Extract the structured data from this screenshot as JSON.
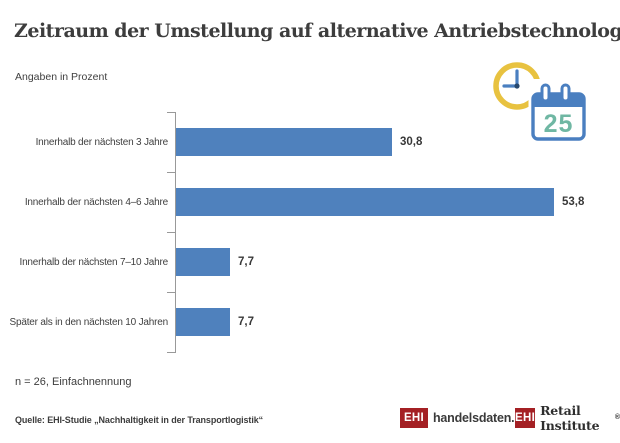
{
  "subtitle": "Angaben in Prozent",
  "chart_data": {
    "type": "bar",
    "orientation": "horizontal",
    "title": "Zeitraum der Umstellung auf alternative Antriebstechnologien",
    "units": "Angaben in Prozent",
    "categories": [
      "Innerhalb der nächsten 3 Jahre",
      "Innerhalb der nächsten 4–6 Jahre",
      "Innerhalb der nächsten 7–10 Jahre",
      "Später als in den nächsten 10 Jahren"
    ],
    "values": [
      30.8,
      53.8,
      7.7,
      7.7
    ],
    "value_labels": [
      "30,8",
      "53,8",
      "7,7",
      "7,7"
    ],
    "xlim": [
      0,
      57
    ],
    "bar_color": "#4f81bd",
    "axis_color": "#999999",
    "grid": false,
    "legend": false
  },
  "icon": {
    "name": "calendar-clock",
    "calendar_day": "25",
    "clock_color": "#e8c240",
    "calendar_color": "#4a7fc0",
    "day_color": "#6fb7a3",
    "hand_dot_color": "#27486e"
  },
  "footnote": "n = 26, Einfachnennung",
  "source": "Quelle: EHI-Studie „Nachhaltigkeit in der Transportlogistik“",
  "logos": [
    {
      "box": "EHI",
      "text": "handelsdaten.de"
    },
    {
      "box": "EHI",
      "text": "Retail Institute",
      "mark": "®"
    }
  ]
}
